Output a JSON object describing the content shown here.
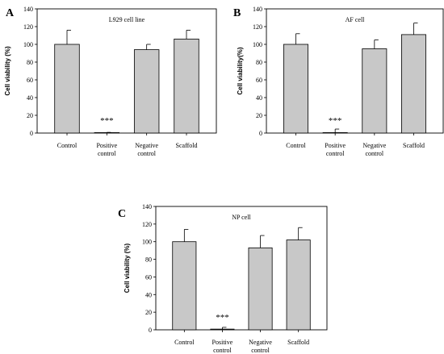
{
  "chart_data": [
    {
      "type": "bar",
      "panel": "A",
      "title": "L929 cell line",
      "ylabel": "Cell viability (%)",
      "ylim": [
        0,
        140
      ],
      "yticks": [
        0,
        20,
        40,
        60,
        80,
        100,
        120,
        140
      ],
      "categories": [
        [
          "Control"
        ],
        [
          "Positive",
          "control"
        ],
        [
          "Negative",
          "control"
        ],
        [
          "Scaffold"
        ]
      ],
      "values": [
        100,
        0.5,
        94,
        106
      ],
      "errors": [
        16,
        0.3,
        6,
        10
      ],
      "annotations": [
        {
          "category_index": 1,
          "text": "***"
        }
      ]
    },
    {
      "type": "bar",
      "panel": "B",
      "title": "AF cell",
      "ylabel": "Cell viability(%)",
      "ylim": [
        0,
        140
      ],
      "yticks": [
        0,
        20,
        40,
        60,
        80,
        100,
        120,
        140
      ],
      "categories": [
        [
          "Control"
        ],
        [
          "Positive",
          "control"
        ],
        [
          "Negative",
          "control"
        ],
        [
          "Scaffold"
        ]
      ],
      "values": [
        100,
        0.5,
        95,
        111
      ],
      "errors": [
        12,
        4,
        10,
        13
      ],
      "annotations": [
        {
          "category_index": 1,
          "text": "***"
        }
      ]
    },
    {
      "type": "bar",
      "panel": "C",
      "title": "NP cell",
      "ylabel": "Cell viability (%)",
      "ylim": [
        0,
        140
      ],
      "yticks": [
        0,
        20,
        40,
        60,
        80,
        100,
        120,
        140
      ],
      "categories": [
        [
          "Control"
        ],
        [
          "Positive",
          "control"
        ],
        [
          "Negative",
          "control"
        ],
        [
          "Scaffold"
        ]
      ],
      "values": [
        100,
        0.8,
        93,
        102
      ],
      "errors": [
        14,
        2,
        14,
        14
      ],
      "annotations": [
        {
          "category_index": 1,
          "text": "***"
        }
      ]
    }
  ]
}
